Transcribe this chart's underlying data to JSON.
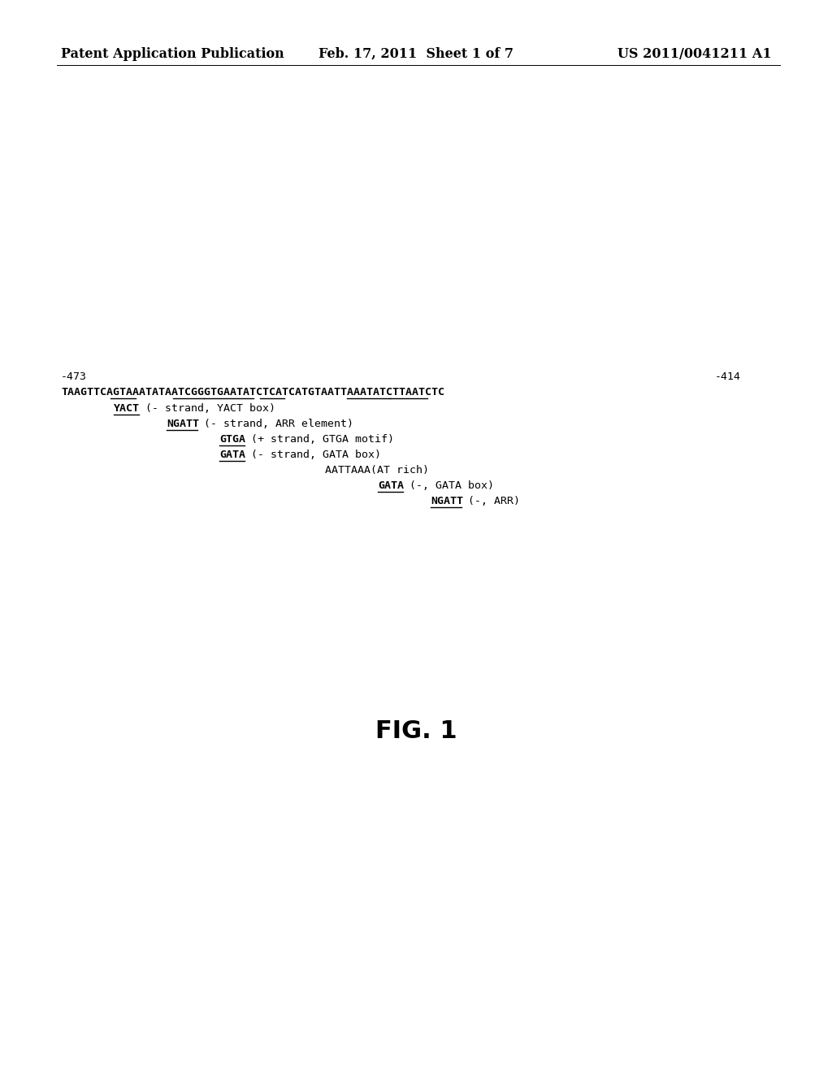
{
  "header_left": "Patent Application Publication",
  "header_mid": "Feb. 17, 2011  Sheet 1 of 7",
  "header_right": "US 2011/0041211 A1",
  "fig_label": "FIG. 1",
  "pos_left": "-473",
  "pos_right": "-414",
  "sequence": "TAAGTTCAGTAAATATAATCGGGTGAATATCTCATCATGTAATTAAATATCTTAATCTC",
  "seq_underline_segments": [
    [
      8,
      11
    ],
    [
      18,
      22
    ],
    [
      23,
      30
    ],
    [
      32,
      35
    ],
    [
      46,
      52
    ],
    [
      53,
      58
    ]
  ],
  "annotations": [
    {
      "indent": 1,
      "bold_text": "YACT",
      "rest": " (- strand, YACT box)"
    },
    {
      "indent": 2,
      "bold_text": "NGATT",
      "rest": " (- strand, ARR element)"
    },
    {
      "indent": 3,
      "bold_text": "GTGA",
      "rest": " (+ strand, GTGA motif)"
    },
    {
      "indent": 3,
      "bold_text": "GATA",
      "rest": " (- strand, GATA box)"
    },
    {
      "indent": 5,
      "bold_text": "",
      "rest": "AATTAAA(AT rich)"
    },
    {
      "indent": 6,
      "bold_text": "GATA",
      "rest": " (-, GATA box)"
    },
    {
      "indent": 7,
      "bold_text": "NGATT",
      "rest": " (-, ARR)"
    }
  ],
  "background_color": "#ffffff",
  "text_color": "#000000",
  "header_fontsize": 11.5,
  "mono_fontsize": 9.5,
  "fig_fontsize": 22
}
